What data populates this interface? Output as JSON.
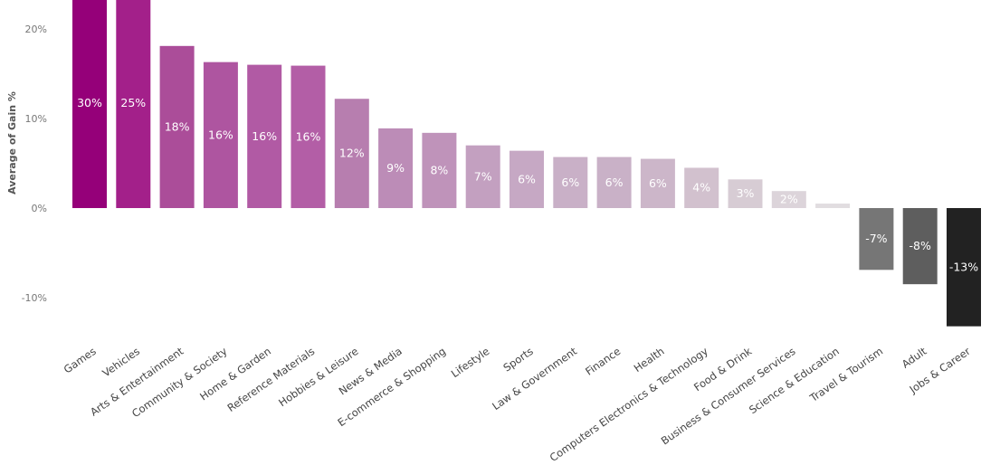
{
  "chart_data": {
    "type": "bar",
    "ylabel": "Average of Gain %",
    "ylim": [
      -14,
      23.5
    ],
    "yticks": [
      20,
      10,
      0,
      -10
    ],
    "ytick_labels": [
      "20%",
      "10%",
      "0%",
      "-10%"
    ],
    "grid": false,
    "legend": "none",
    "categories": [
      "Games",
      "Vehicles",
      "Arts & Entertainment",
      "Community & Society",
      "Home & Garden",
      "Reference Materials",
      "Hobbies & Leisure",
      "News & Media",
      "E-commerce & Shopping",
      "Lifestyle",
      "Sports",
      "Law & Government",
      "Finance",
      "Health",
      "Computers Electronics & Technology",
      "Food & Drink",
      "Business & Consumer Services",
      "Science & Education",
      "Travel & Tourism",
      "Adult",
      "Jobs & Career"
    ],
    "values": [
      30,
      25,
      18.1,
      16.3,
      16,
      15.9,
      12.2,
      8.9,
      8.4,
      7,
      6.4,
      5.7,
      5.7,
      5.5,
      4.5,
      3.2,
      1.9,
      0.5,
      -6.9,
      -8.5,
      -13.2
    ],
    "data_labels": [
      "30%",
      "25%",
      "18%",
      "16%",
      "16%",
      "16%",
      "12%",
      "9%",
      "8%",
      "7%",
      "6%",
      "6%",
      "6%",
      "6%",
      "4%",
      "3%",
      "2%",
      "",
      "-7%",
      "-8%",
      "-13%"
    ],
    "colors": [
      "#950079",
      "#a3208a",
      "#ab4d99",
      "#ae55a0",
      "#b15aa4",
      "#b35ea6",
      "#b77eaf",
      "#bc8cb7",
      "#bf93ba",
      "#c3a0c0",
      "#c6a8c4",
      "#c9b0c7",
      "#c9b1c7",
      "#ccb6c9",
      "#d2c1ce",
      "#d7ccd4",
      "#dcd4da",
      "#e1dde0",
      "#767676",
      "#5e5e5e",
      "#222222"
    ]
  }
}
